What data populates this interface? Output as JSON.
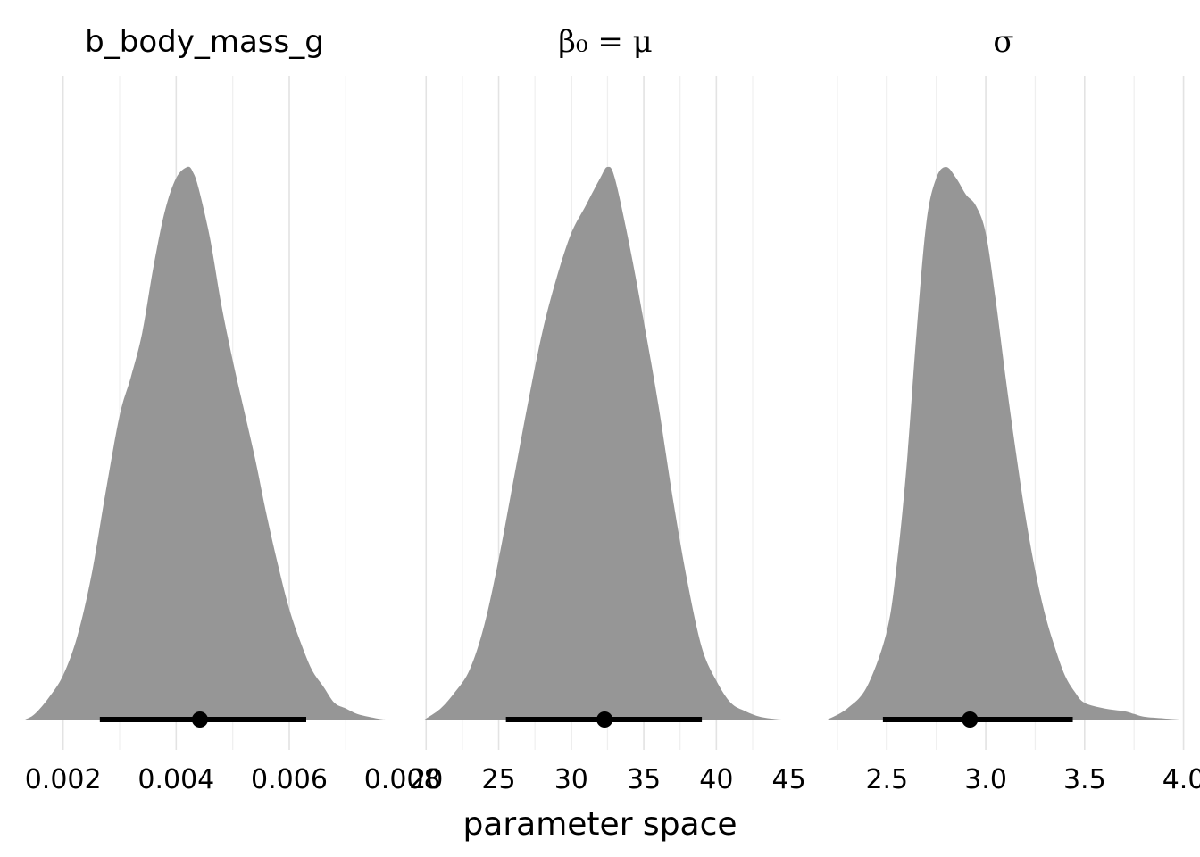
{
  "chart_data": [
    {
      "type": "area",
      "title": "b_body_mass_g",
      "x_ticks": [
        "0.002",
        "0.004",
        "0.006",
        "0.008"
      ],
      "xlim": [
        0.0012,
        0.0078
      ],
      "density": {
        "x": [
          0.00133,
          0.0015,
          0.00175,
          0.002,
          0.00225,
          0.0025,
          0.00275,
          0.003,
          0.0032,
          0.0034,
          0.0036,
          0.0038,
          0.004,
          0.0042,
          0.0043,
          0.0044,
          0.0046,
          0.0048,
          0.005,
          0.0052,
          0.0054,
          0.0056,
          0.0058,
          0.006,
          0.0062,
          0.0064,
          0.0066,
          0.0068,
          0.007,
          0.0072,
          0.0074,
          0.0076,
          0.0077
        ],
        "y": [
          0.0,
          0.01,
          0.04,
          0.08,
          0.15,
          0.26,
          0.41,
          0.55,
          0.62,
          0.7,
          0.82,
          0.92,
          0.98,
          1.0,
          0.99,
          0.96,
          0.87,
          0.75,
          0.65,
          0.56,
          0.47,
          0.37,
          0.28,
          0.2,
          0.14,
          0.09,
          0.06,
          0.03,
          0.02,
          0.01,
          0.005,
          0.001,
          0.0
        ]
      },
      "median": 0.00442,
      "interval": [
        0.00265,
        0.0063
      ]
    },
    {
      "type": "area",
      "title": "β₀ = μ",
      "x_ticks": [
        "20",
        "25",
        "30",
        "35",
        "40",
        "45"
      ],
      "xlim": [
        19.8,
        44.9
      ],
      "density": {
        "x": [
          19.9,
          21.0,
          22.0,
          23.0,
          24.0,
          25.0,
          26.0,
          27.0,
          28.0,
          29.0,
          30.0,
          31.0,
          32.0,
          32.5,
          33.0,
          34.0,
          35.0,
          36.0,
          37.0,
          38.0,
          39.0,
          40.0,
          41.0,
          42.0,
          43.0,
          44.0,
          44.5
        ],
        "y": [
          0.0,
          0.02,
          0.05,
          0.09,
          0.17,
          0.29,
          0.43,
          0.57,
          0.7,
          0.8,
          0.88,
          0.93,
          0.98,
          1.0,
          0.98,
          0.86,
          0.72,
          0.57,
          0.4,
          0.25,
          0.13,
          0.07,
          0.03,
          0.015,
          0.005,
          0.001,
          0.0
        ]
      },
      "median": 32.3,
      "interval": [
        25.5,
        39.0
      ]
    },
    {
      "type": "area",
      "title": "σ",
      "x_ticks": [
        "2.5",
        "3.0",
        "3.5",
        "4.0"
      ],
      "xlim": [
        2.16,
        4.02
      ],
      "density": {
        "x": [
          2.2,
          2.3,
          2.4,
          2.5,
          2.55,
          2.6,
          2.65,
          2.7,
          2.75,
          2.8,
          2.85,
          2.9,
          2.95,
          3.0,
          3.05,
          3.1,
          3.15,
          3.2,
          3.25,
          3.3,
          3.35,
          3.4,
          3.45,
          3.5,
          3.6,
          3.7,
          3.75,
          3.8,
          3.9,
          3.98
        ],
        "y": [
          0.0,
          0.02,
          0.06,
          0.16,
          0.28,
          0.46,
          0.7,
          0.9,
          0.98,
          1.0,
          0.98,
          0.95,
          0.93,
          0.88,
          0.76,
          0.62,
          0.49,
          0.37,
          0.27,
          0.19,
          0.13,
          0.08,
          0.05,
          0.03,
          0.02,
          0.015,
          0.01,
          0.005,
          0.002,
          0.0
        ]
      },
      "median": 2.92,
      "interval": [
        2.48,
        3.44
      ]
    }
  ],
  "x_axis_title": "parameter space",
  "colors": {
    "density_fill": "#969696",
    "interval": "#000000",
    "grid": "#e3e3e3"
  }
}
